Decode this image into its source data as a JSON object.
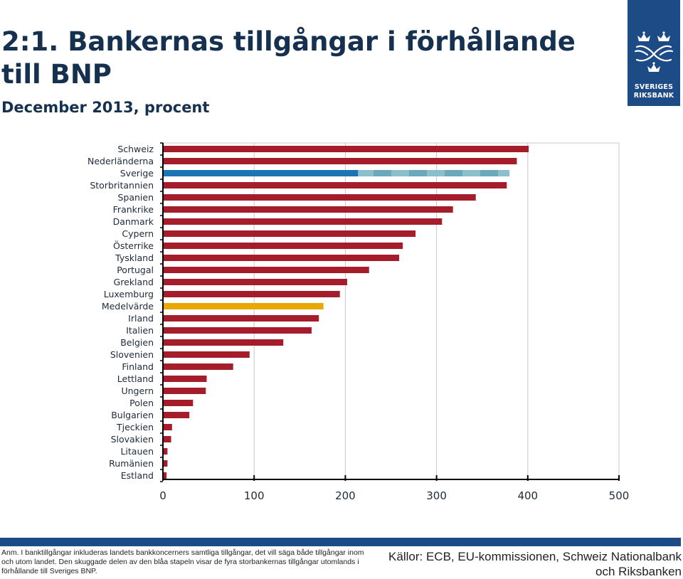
{
  "header": {
    "title": "2:1. Bankernas tillgångar i förhållande till BNP",
    "subtitle": "December 2013, procent"
  },
  "logo": {
    "icon": "riksbank-crest-icon",
    "line1": "SVERIGES",
    "line2": "RIKSBANK"
  },
  "chart_data": {
    "type": "bar",
    "orientation": "horizontal",
    "categories": [
      "Schweiz",
      "Nederländerna",
      "Sverige",
      "Storbritannien",
      "Spanien",
      "Frankrike",
      "Danmark",
      "Cypern",
      "Österrike",
      "Tyskland",
      "Portugal",
      "Grekland",
      "Luxemburg",
      "Medelvärde",
      "Irland",
      "Italien",
      "Belgien",
      "Slovenien",
      "Finland",
      "Lettland",
      "Ungern",
      "Polen",
      "Bulgarien",
      "Tjeckien",
      "Slovakien",
      "Litauen",
      "Rumänien",
      "Estland"
    ],
    "values": [
      401,
      388,
      380,
      377,
      343,
      318,
      306,
      277,
      263,
      259,
      226,
      202,
      194,
      176,
      171,
      163,
      132,
      95,
      77,
      48,
      47,
      33,
      29,
      10,
      9,
      5,
      5,
      4
    ],
    "domestic_part": {
      "category": "Sverige",
      "value": 214
    },
    "highlight": {
      "category": "Medelvärde"
    },
    "xlim": [
      0,
      500
    ],
    "xticks": [
      0,
      100,
      200,
      300,
      400,
      500
    ],
    "grid": true,
    "colors": {
      "bar": "#a51c2a",
      "average": "#e8a800",
      "domestic": "#1b75b5",
      "foreign": "#8cbfcc",
      "foreign_alt": "#6aa9bb",
      "grid": "#c8c8c8",
      "axis": "#000000"
    }
  },
  "footer": {
    "note": "Anm. I banktillgångar inkluderas landets bankkoncerners samtliga tillgångar, det vill säga både tillgångar inom och utom landet. Den skuggade delen av den blåa stapeln visar de fyra storbankernas tillgångar utomlands i förhållande till Sveriges BNP.",
    "source": "Källor: ECB, EU-kommissionen, Schweiz Nationalbank och Riksbanken",
    "band_color": "#1d4b86"
  }
}
